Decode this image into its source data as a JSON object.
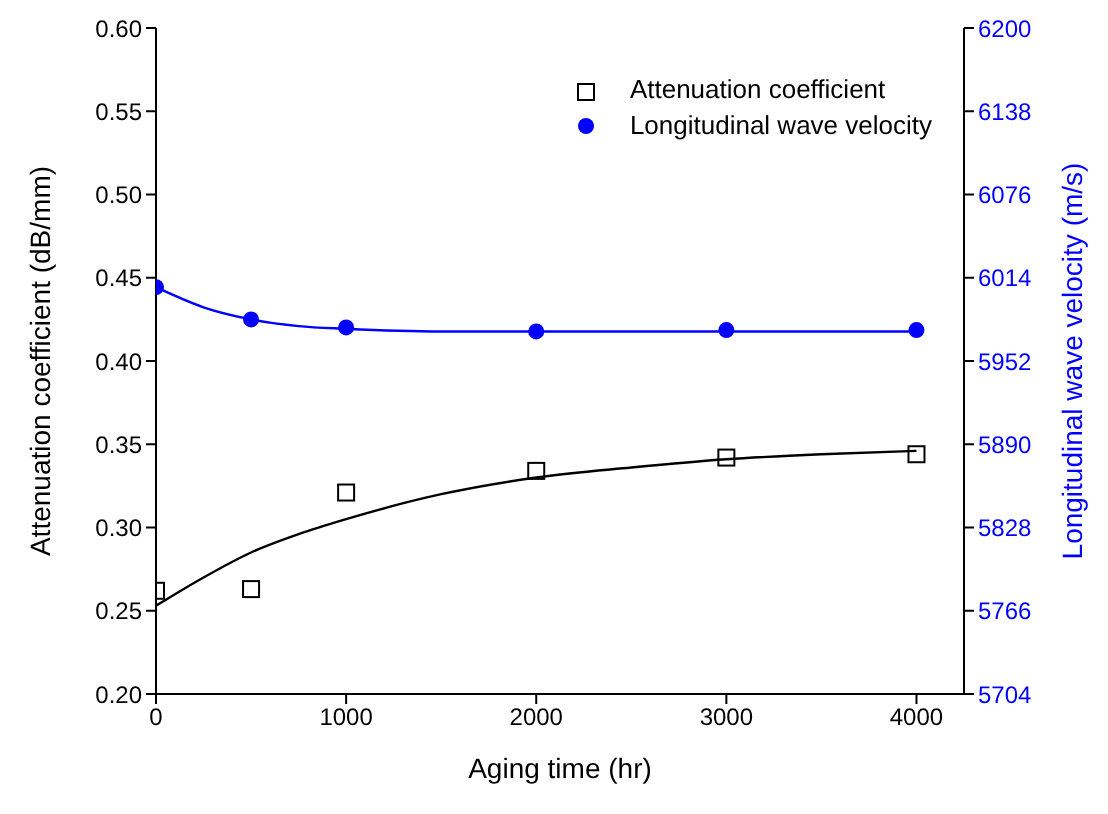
{
  "chart_data": {
    "type": "scatter",
    "xlabel": "Aging time (hr)",
    "ylabel": "Attenuation coefficient (dB/mm)",
    "y2label": "Longitudinal wave velocity (m/s)",
    "xlim": [
      0,
      4250
    ],
    "xticks": [
      0,
      1000,
      2000,
      3000,
      4000
    ],
    "ylim": [
      0.2,
      0.6
    ],
    "yticks": [
      {
        "value": 0.2,
        "label": "0.20"
      },
      0.25,
      {
        "value": 0.3,
        "label": "0.30"
      },
      0.35,
      {
        "value": 0.4,
        "label": "0.40"
      },
      0.45,
      {
        "value": 0.5,
        "label": "0.50"
      },
      0.55,
      {
        "value": 0.6,
        "label": "0.60"
      }
    ],
    "y2lim": [
      5704,
      6200
    ],
    "y2ticks": [
      5704,
      5766,
      5828,
      5890,
      5952,
      6014,
      6076,
      6138,
      6200
    ],
    "legend": "top right",
    "series": [
      {
        "name": "Attenuation coefficient",
        "marker": "square",
        "color": "#000000",
        "x": [
          0,
          500,
          1000,
          2000,
          3000,
          4000
        ],
        "values": [
          0.262,
          0.263,
          0.321,
          0.334,
          0.342,
          0.344
        ]
      },
      {
        "name": "Longitudinal wave velocity",
        "marker": "circle",
        "axis": "y2",
        "color": "#0000ff",
        "x": [
          0,
          500,
          1000,
          2000,
          3000,
          4000
        ],
        "values": [
          6007,
          5983,
          5977,
          5974,
          5975,
          5975
        ]
      },
      {
        "type": "line",
        "marker": "none",
        "color": "#000000",
        "x": [
          0,
          250,
          500,
          750,
          1000,
          1500,
          2000,
          2500,
          3000,
          3500,
          4000
        ],
        "values": [
          0.253,
          0.27,
          0.285,
          0.296,
          0.305,
          0.32,
          0.33,
          0.336,
          0.341,
          0.344,
          0.346
        ]
      },
      {
        "type": "line",
        "marker": "none",
        "axis": "y2",
        "color": "#0000ff",
        "x": [
          0,
          250,
          500,
          750,
          1000,
          1500,
          2000,
          3000,
          4000
        ],
        "values": [
          6007,
          5992,
          5983,
          5978,
          5976,
          5974,
          5974,
          5974,
          5974
        ]
      }
    ]
  }
}
